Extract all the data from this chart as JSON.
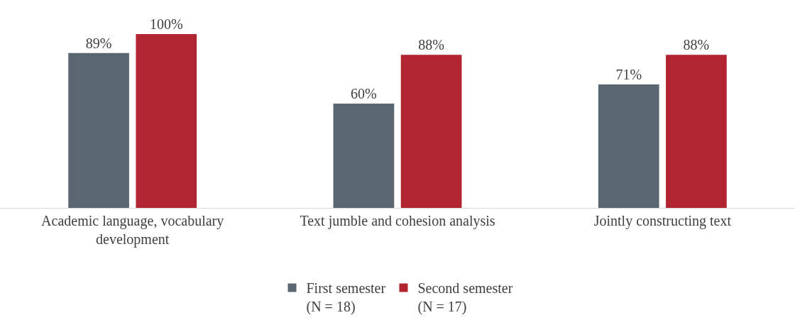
{
  "chart_data": {
    "type": "bar",
    "categories": [
      "Academic language, vocabulary development",
      "Text jumble and cohesion analysis",
      "Jointly constructing text"
    ],
    "series": [
      {
        "name": "First semester\n(N = 18)",
        "color": "#5a6670",
        "values": [
          89,
          60,
          71
        ],
        "value_labels": [
          "89%",
          "60%",
          "71%"
        ]
      },
      {
        "name": "Second semester\n(N = 17)",
        "color": "#b0252f",
        "values": [
          100,
          88,
          88
        ],
        "value_labels": [
          "100%",
          "88%",
          "88%"
        ]
      }
    ],
    "legend": "bottom"
  }
}
